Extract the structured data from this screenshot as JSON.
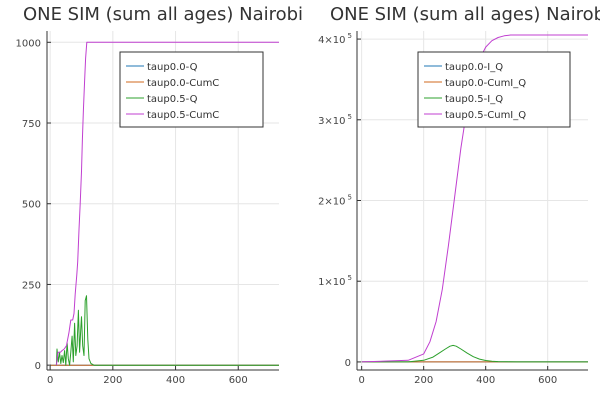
{
  "chart_data": [
    {
      "type": "line",
      "title": "ONE SIM (sum all ages) Nairobi",
      "xlim": [
        -10,
        730
      ],
      "ylim": [
        -15,
        1035
      ],
      "xticks": [
        0,
        200,
        400,
        600
      ],
      "yticks": [
        0,
        250,
        500,
        750,
        1000
      ],
      "ytick_format": "plain",
      "grid": true,
      "legend_position": "top-right",
      "series": [
        {
          "name": "taup0.0-Q",
          "color": "#1f77b4",
          "x": [
            0,
            20,
            730
          ],
          "y": [
            0,
            0,
            0
          ]
        },
        {
          "name": "taup0.0-CumC",
          "color": "#d2691e",
          "x": [
            0,
            20,
            730
          ],
          "y": [
            0,
            0,
            0
          ]
        },
        {
          "name": "taup0.5-Q",
          "color": "#2ca02c",
          "x": [
            20,
            22,
            26,
            30,
            34,
            38,
            42,
            46,
            50,
            54,
            58,
            62,
            66,
            70,
            74,
            78,
            82,
            86,
            90,
            94,
            98,
            100,
            104,
            108,
            112,
            116,
            120,
            124,
            130,
            140,
            160,
            730
          ],
          "y": [
            0,
            50,
            10,
            40,
            5,
            30,
            8,
            45,
            0,
            70,
            20,
            0,
            40,
            90,
            10,
            130,
            30,
            60,
            170,
            40,
            120,
            150,
            60,
            30,
            200,
            215,
            80,
            20,
            5,
            0,
            0,
            0
          ]
        },
        {
          "name": "taup0.5-CumC",
          "color": "#c03fd0",
          "x": [
            20,
            25,
            28,
            33,
            38,
            45,
            52,
            60,
            66,
            72,
            76,
            80,
            85,
            88,
            92,
            96,
            100,
            103,
            106,
            110,
            113,
            117,
            120,
            730
          ],
          "y": [
            0,
            40,
            40,
            40,
            45,
            50,
            60,
            100,
            140,
            140,
            160,
            220,
            280,
            320,
            420,
            500,
            600,
            700,
            790,
            880,
            950,
            1000,
            1000,
            1000
          ]
        }
      ]
    },
    {
      "type": "line",
      "title": "ONE SIM (sum all ages) Nairobi",
      "xlim": [
        -15,
        730
      ],
      "ylim": [
        -10000,
        410000
      ],
      "xticks": [
        0,
        200,
        400,
        600
      ],
      "yticks": [
        0,
        100000,
        200000,
        300000,
        400000
      ],
      "ytick_format": "sci",
      "grid": true,
      "legend_position": "top-right",
      "series": [
        {
          "name": "taup0.0-I_Q",
          "color": "#1f77b4",
          "x": [
            0,
            730
          ],
          "y": [
            0,
            0
          ]
        },
        {
          "name": "taup0.0-CumI_Q",
          "color": "#d2691e",
          "x": [
            0,
            730
          ],
          "y": [
            0,
            0
          ]
        },
        {
          "name": "taup0.5-I_Q",
          "color": "#2ca02c",
          "x": [
            0,
            150,
            200,
            230,
            250,
            270,
            285,
            295,
            305,
            320,
            340,
            360,
            380,
            400,
            420,
            440,
            470,
            500,
            730
          ],
          "y": [
            0,
            0,
            2000,
            6000,
            11000,
            16000,
            19500,
            20500,
            19500,
            16000,
            11000,
            6500,
            3500,
            1800,
            900,
            400,
            100,
            0,
            0
          ]
        },
        {
          "name": "taup0.5-CumI_Q",
          "color": "#c03fd0",
          "x": [
            0,
            150,
            200,
            220,
            240,
            260,
            280,
            300,
            320,
            340,
            360,
            380,
            400,
            420,
            440,
            460,
            480,
            500,
            550,
            600,
            730
          ],
          "y": [
            0,
            2000,
            10000,
            25000,
            50000,
            90000,
            145000,
            205000,
            265000,
            315000,
            350000,
            375000,
            390000,
            398000,
            402000,
            404000,
            405000,
            405000,
            405000,
            405000,
            405000
          ]
        }
      ]
    }
  ]
}
